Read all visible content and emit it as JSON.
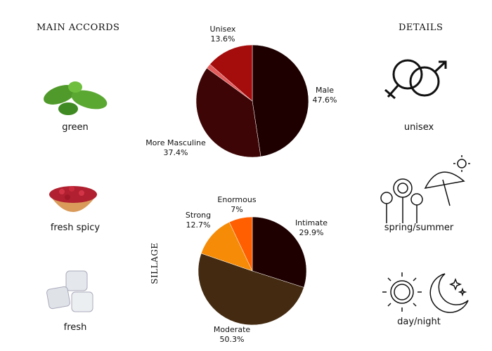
{
  "accords": {
    "title": "MAIN ACCORDS",
    "items": [
      {
        "label": "green",
        "icon": "basil-leaves-icon"
      },
      {
        "label": "fresh spicy",
        "icon": "pink-pepper-bowl-icon"
      },
      {
        "label": "fresh",
        "icon": "ice-cubes-icon"
      }
    ]
  },
  "details": {
    "title": "DETAILS",
    "items": [
      {
        "label": "unisex",
        "icon": "gender-symbols-icon"
      },
      {
        "label": "spring/summer",
        "icon": "flowers-umbrella-sun-icon"
      },
      {
        "label": "day/night",
        "icon": "sun-moon-icon"
      }
    ]
  },
  "chart_data": [
    {
      "type": "pie",
      "slices": [
        {
          "label": "Male",
          "value": 47.6,
          "text": "47.6%",
          "color": "#1e0000"
        },
        {
          "label": "More Masculine",
          "value": 37.4,
          "text": "37.4%",
          "color": "#3d0505"
        },
        {
          "label": "",
          "value": 1.4,
          "text": "",
          "color": "#e35b5b"
        },
        {
          "label": "Unisex",
          "value": 13.6,
          "text": "13.6%",
          "color": "#a50c0c"
        }
      ]
    },
    {
      "type": "pie",
      "title": "SILLAGE",
      "slices": [
        {
          "label": "Intimate",
          "value": 29.9,
          "text": "29.9%",
          "color": "#1e0000"
        },
        {
          "label": "Moderate",
          "value": 50.3,
          "text": "50.3%",
          "color": "#432a10"
        },
        {
          "label": "Strong",
          "value": 12.7,
          "text": "12.7%",
          "color": "#f58b06"
        },
        {
          "label": "Enormous",
          "value": 7,
          "text": "7%",
          "color": "#ff5f00"
        }
      ]
    }
  ]
}
